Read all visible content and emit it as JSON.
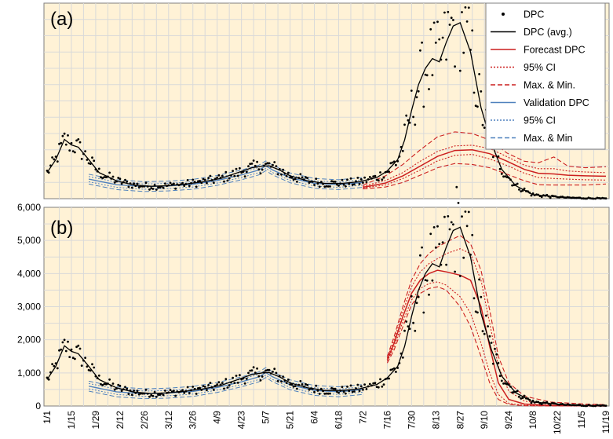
{
  "chart_data": [
    {
      "panel": "(a)",
      "type": "line",
      "title": "",
      "xlabel": "",
      "ylabel": "",
      "ylim": [
        0,
        6000
      ],
      "x_tick_labels": [
        "1/1",
        "1/15",
        "1/29",
        "2/12",
        "2/26",
        "3/12",
        "3/26",
        "4/9",
        "4/23",
        "5/7",
        "5/21",
        "6/4",
        "6/18",
        "7/2",
        "7/16",
        "7/30",
        "8/13",
        "8/27",
        "9/10",
        "9/24",
        "10/8",
        "10/22",
        "11/5",
        "11/19"
      ],
      "x_day_index_of_ticks": [
        0,
        14,
        28,
        42,
        56,
        70,
        84,
        98,
        112,
        126,
        140,
        154,
        168,
        182,
        196,
        210,
        224,
        238,
        252,
        266,
        280,
        294,
        308,
        322
      ],
      "legend": [
        {
          "label": "DPC",
          "style": "dots",
          "color": "#000000"
        },
        {
          "label": "DPC (avg.)",
          "style": "solid",
          "color": "#000000"
        },
        {
          "label": "Forecast DPC",
          "style": "solid",
          "color": "#cc1f1f"
        },
        {
          "label": "95% CI",
          "style": "dotted",
          "color": "#cc1f1f"
        },
        {
          "label": "Max. & Min.",
          "style": "dashed",
          "color": "#cc1f1f"
        },
        {
          "label": "Validation DPC",
          "style": "solid",
          "color": "#4f81bd"
        },
        {
          "label": "95% CI",
          "style": "dotted",
          "color": "#4f81bd"
        },
        {
          "label": "Max. & Min",
          "style": "dashed",
          "color": "#4f81bd"
        }
      ],
      "series": {
        "dpc_avg": {
          "x": [
            0,
            5,
            10,
            14,
            18,
            24,
            30,
            40,
            50,
            60,
            70,
            80,
            90,
            100,
            110,
            118,
            124,
            128,
            134,
            140,
            150,
            160,
            170,
            180,
            190,
            196,
            202,
            206,
            210,
            214,
            218,
            222,
            226,
            230,
            234,
            238,
            244,
            250,
            256,
            262,
            270,
            280,
            300,
            322
          ],
          "y": [
            800,
            1200,
            1820,
            1650,
            1580,
            1200,
            800,
            550,
            420,
            380,
            400,
            450,
            520,
            620,
            800,
            950,
            1000,
            1010,
            880,
            700,
            550,
            470,
            470,
            520,
            650,
            850,
            1200,
            1800,
            2700,
            3500,
            4000,
            4300,
            4200,
            4800,
            5300,
            5400,
            4500,
            2800,
            1700,
            900,
            400,
            120,
            30,
            0
          ]
        },
        "forecast": {
          "x": [
            182,
            195,
            205,
            215,
            225,
            235,
            245,
            255,
            265,
            275,
            283,
            292,
            300,
            310,
            322
          ],
          "y": [
            350,
            480,
            700,
            1000,
            1300,
            1480,
            1500,
            1380,
            1150,
            900,
            780,
            760,
            720,
            700,
            690
          ]
        },
        "forecast_ci_upper": {
          "x": [
            182,
            195,
            205,
            215,
            225,
            235,
            245,
            255,
            265,
            275,
            283,
            292,
            300,
            310,
            322
          ],
          "y": [
            380,
            560,
            800,
            1150,
            1450,
            1620,
            1640,
            1540,
            1290,
            1030,
            920,
            920,
            850,
            820,
            800
          ]
        },
        "forecast_ci_lower": {
          "x": [
            182,
            195,
            205,
            215,
            225,
            235,
            245,
            255,
            265,
            275,
            283,
            292,
            300,
            310,
            322
          ],
          "y": [
            330,
            420,
            620,
            880,
            1160,
            1330,
            1360,
            1220,
            1020,
            780,
            650,
            620,
            600,
            580,
            570
          ]
        },
        "forecast_max": {
          "x": [
            182,
            195,
            205,
            215,
            225,
            235,
            245,
            255,
            265,
            275,
            283,
            292,
            300,
            310,
            322
          ],
          "y": [
            420,
            700,
            1050,
            1500,
            1900,
            2050,
            2000,
            1800,
            1400,
            1150,
            1100,
            1280,
            1000,
            950,
            980
          ]
        },
        "forecast_min": {
          "x": [
            182,
            195,
            205,
            215,
            225,
            235,
            245,
            255,
            265,
            275,
            283,
            292,
            300,
            310,
            322
          ],
          "y": [
            300,
            360,
            500,
            720,
            950,
            1080,
            1050,
            950,
            750,
            550,
            430,
            420,
            420,
            420,
            450
          ]
        },
        "validation": {
          "x": [
            24,
            40,
            56,
            70,
            84,
            98,
            112,
            122,
            126,
            130,
            140,
            154,
            168,
            182
          ],
          "y": [
            600,
            430,
            370,
            390,
            440,
            560,
            730,
            880,
            1010,
            880,
            640,
            470,
            430,
            500
          ]
        }
      }
    },
    {
      "panel": "(b)",
      "type": "line",
      "title": "",
      "xlabel": "",
      "ylabel": "",
      "ylim": [
        0,
        6000
      ],
      "y_ticks": [
        0,
        1000,
        2000,
        3000,
        4000,
        5000,
        6000
      ],
      "y_tick_labels": [
        "0",
        "1,000",
        "2,000",
        "3,000",
        "4,000",
        "5,000",
        "6,000"
      ],
      "x_tick_labels": [
        "1/1",
        "1/15",
        "1/29",
        "2/12",
        "2/26",
        "3/12",
        "3/26",
        "4/9",
        "4/23",
        "5/7",
        "5/21",
        "6/4",
        "6/18",
        "7/2",
        "7/16",
        "7/30",
        "8/13",
        "8/27",
        "9/10",
        "9/24",
        "10/8",
        "10/22",
        "11/5",
        "11/19"
      ],
      "x_day_index_of_ticks": [
        0,
        14,
        28,
        42,
        56,
        70,
        84,
        98,
        112,
        126,
        140,
        154,
        168,
        182,
        196,
        210,
        224,
        238,
        252,
        266,
        280,
        294,
        308,
        322
      ],
      "series": {
        "dpc_avg": {
          "x": [
            0,
            5,
            10,
            14,
            18,
            24,
            30,
            40,
            50,
            60,
            70,
            80,
            90,
            100,
            110,
            118,
            124,
            128,
            134,
            140,
            150,
            160,
            170,
            180,
            190,
            196,
            202,
            206,
            210,
            214,
            218,
            222,
            226,
            230,
            234,
            238,
            244,
            250,
            256,
            262,
            270,
            280,
            300,
            322
          ],
          "y": [
            800,
            1200,
            1820,
            1650,
            1580,
            1200,
            800,
            550,
            420,
            380,
            400,
            450,
            520,
            620,
            800,
            950,
            1000,
            1010,
            880,
            700,
            550,
            470,
            470,
            520,
            650,
            850,
            1200,
            1800,
            2700,
            3500,
            4000,
            4300,
            4200,
            4800,
            5300,
            5400,
            4500,
            2800,
            1700,
            900,
            400,
            120,
            30,
            0
          ]
        },
        "forecast": {
          "x": [
            196,
            200,
            205,
            210,
            215,
            220,
            225,
            230,
            238,
            244,
            250,
            255,
            260,
            266,
            275,
            290,
            310,
            322
          ],
          "y": [
            1400,
            1900,
            2700,
            3400,
            3800,
            4000,
            4100,
            4050,
            3950,
            3800,
            3000,
            1800,
            700,
            200,
            60,
            20,
            10,
            0
          ]
        },
        "forecast_ci_upper": {
          "x": [
            196,
            200,
            205,
            210,
            215,
            220,
            225,
            230,
            238,
            244,
            250,
            255,
            260,
            266,
            275,
            290,
            310,
            322
          ],
          "y": [
            1450,
            2000,
            2850,
            3600,
            4050,
            4300,
            4450,
            4600,
            4750,
            4600,
            3800,
            2500,
            1200,
            450,
            150,
            60,
            30,
            20
          ]
        },
        "forecast_ci_lower": {
          "x": [
            196,
            200,
            205,
            210,
            215,
            220,
            225,
            230,
            238,
            244,
            250,
            255,
            260,
            266,
            275,
            290,
            310,
            322
          ],
          "y": [
            1350,
            1800,
            2550,
            3200,
            3550,
            3700,
            3750,
            3650,
            3300,
            2800,
            1900,
            1000,
            350,
            80,
            20,
            10,
            0,
            0
          ]
        },
        "forecast_max": {
          "x": [
            196,
            200,
            205,
            210,
            215,
            220,
            225,
            230,
            238,
            244,
            250,
            255,
            260,
            266,
            275,
            290,
            310,
            322
          ],
          "y": [
            1500,
            2100,
            3000,
            3800,
            4300,
            4600,
            4800,
            4950,
            5150,
            4900,
            4100,
            2900,
            1500,
            700,
            300,
            120,
            60,
            40
          ]
        },
        "forecast_min": {
          "x": [
            196,
            200,
            205,
            210,
            215,
            220,
            225,
            230,
            238,
            244,
            250,
            255,
            260,
            266,
            275,
            290,
            310,
            322
          ],
          "y": [
            1300,
            1700,
            2400,
            3050,
            3400,
            3550,
            3600,
            3500,
            3000,
            2400,
            1500,
            700,
            200,
            50,
            10,
            0,
            0,
            0
          ]
        },
        "validation": {
          "x": [
            24,
            40,
            56,
            70,
            84,
            98,
            112,
            122,
            126,
            130,
            140,
            154,
            168,
            182
          ],
          "y": [
            600,
            430,
            370,
            390,
            440,
            560,
            730,
            880,
            1010,
            880,
            640,
            470,
            430,
            500
          ]
        }
      }
    }
  ]
}
